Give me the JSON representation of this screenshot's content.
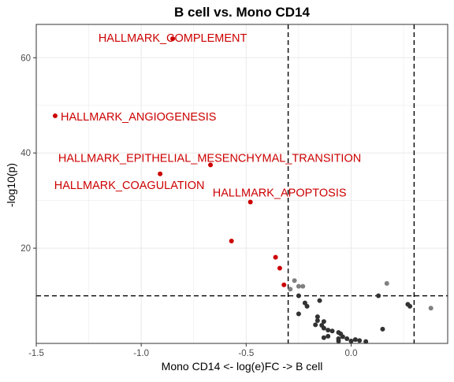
{
  "chart_data": {
    "type": "scatter",
    "title": "B cell vs. Mono CD14",
    "xlabel": "Mono CD14 <- log(e)FC -> B cell",
    "ylabel": "-log10(p)",
    "xlim": [
      -1.5,
      0.46
    ],
    "ylim": [
      0,
      67
    ],
    "x_ticks": [
      -1.5,
      -1.0,
      -0.5,
      0.0
    ],
    "x_tick_labels": [
      "-1.5",
      "-1.0",
      "-0.5",
      "0.0"
    ],
    "y_ticks": [
      20,
      40,
      60
    ],
    "y_tick_labels": [
      "20",
      "40",
      "60"
    ],
    "grid": true,
    "thresholds": {
      "x": [
        -0.3,
        0.3
      ],
      "y": 10
    },
    "colors": {
      "significant": "#cc0000",
      "faded": "#808080",
      "other": "#333333",
      "line": "#000000",
      "grid": "#ebebeb",
      "border": "#333333"
    },
    "series": [
      {
        "category": "significant",
        "points": [
          [
            -0.85,
            64.0
          ],
          [
            -1.41,
            47.8
          ],
          [
            -0.67,
            37.5
          ],
          [
            -0.91,
            35.6
          ],
          [
            -0.48,
            29.7
          ],
          [
            -0.57,
            21.5
          ],
          [
            -0.36,
            18.1
          ],
          [
            -0.34,
            15.8
          ],
          [
            -0.32,
            12.3
          ]
        ]
      },
      {
        "category": "faded",
        "points": [
          [
            -0.27,
            13.2
          ],
          [
            -0.25,
            12.0
          ],
          [
            -0.23,
            12.0
          ],
          [
            -0.29,
            11.4
          ],
          [
            0.17,
            12.6
          ],
          [
            0.38,
            7.4
          ]
        ]
      },
      {
        "category": "other",
        "points": [
          [
            -0.25,
            10.0
          ],
          [
            -0.22,
            8.5
          ],
          [
            -0.15,
            9.0
          ],
          [
            -0.21,
            7.8
          ],
          [
            -0.25,
            6.2
          ],
          [
            -0.16,
            5.6
          ],
          [
            -0.16,
            4.8
          ],
          [
            -0.13,
            4.6
          ],
          [
            -0.14,
            3.8
          ],
          [
            -0.13,
            3.2
          ],
          [
            -0.17,
            3.9
          ],
          [
            -0.11,
            2.8
          ],
          [
            -0.09,
            2.6
          ],
          [
            -0.06,
            2.3
          ],
          [
            -0.05,
            2.0
          ],
          [
            -0.04,
            1.4
          ],
          [
            -0.02,
            1.0
          ],
          [
            -0.13,
            1.2
          ],
          [
            -0.11,
            1.5
          ],
          [
            -0.06,
            1.0
          ],
          [
            -0.06,
            0.5
          ],
          [
            0.0,
            0.5
          ],
          [
            0.02,
            0.8
          ],
          [
            0.04,
            0.6
          ],
          [
            0.07,
            0.4
          ],
          [
            0.15,
            3.0
          ],
          [
            0.13,
            10.0
          ],
          [
            0.27,
            8.2
          ],
          [
            0.28,
            7.8
          ]
        ]
      }
    ],
    "annotations": [
      {
        "text": "HALLMARK_COMPLEMENT",
        "x": -0.85,
        "y": 64.0
      },
      {
        "text": "HALLMARK_ANGIOGENESIS",
        "x": -1.41,
        "y": 47.8
      },
      {
        "text": "HALLMARK_EPITHELIAL_MESENCHYMAL_TRANSITION",
        "x": -0.67,
        "y": 37.5
      },
      {
        "text": "HALLMARK_COAGULATION",
        "x": -0.91,
        "y": 35.6
      },
      {
        "text": "HALLMARK_APOPTOSIS",
        "x": -0.48,
        "y": 29.7
      }
    ]
  }
}
